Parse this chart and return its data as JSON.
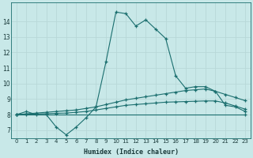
{
  "xlabel": "Humidex (Indice chaleur)",
  "bg_color": "#c8e8e8",
  "grid_color": "#b8d8d8",
  "line_color": "#1a6e6e",
  "xlim": [
    -0.5,
    23.5
  ],
  "ylim": [
    6.5,
    15.2
  ],
  "yticks": [
    7,
    8,
    9,
    10,
    11,
    12,
    13,
    14
  ],
  "xticks": [
    0,
    1,
    2,
    3,
    4,
    5,
    6,
    7,
    8,
    9,
    10,
    11,
    12,
    13,
    14,
    15,
    16,
    17,
    18,
    19,
    20,
    21,
    22,
    23
  ],
  "line1_x": [
    0,
    1,
    2,
    3,
    4,
    5,
    6,
    7,
    8,
    9,
    10,
    11,
    12,
    13,
    14,
    15,
    16,
    17,
    18,
    19,
    20,
    21,
    22,
    23
  ],
  "line1_y": [
    8.0,
    8.2,
    8.0,
    8.0,
    7.2,
    6.7,
    7.2,
    7.8,
    8.5,
    11.4,
    14.6,
    14.5,
    13.7,
    14.1,
    13.5,
    12.9,
    10.5,
    9.7,
    9.8,
    9.8,
    9.5,
    8.6,
    8.5,
    8.2
  ],
  "line2_x": [
    0,
    1,
    2,
    3,
    4,
    5,
    6,
    7,
    8,
    9,
    10,
    11,
    12,
    13,
    14,
    15,
    16,
    17,
    18,
    19,
    20,
    21,
    22,
    23
  ],
  "line2_y": [
    8.0,
    8.05,
    8.1,
    8.15,
    8.2,
    8.25,
    8.3,
    8.4,
    8.5,
    8.65,
    8.8,
    8.95,
    9.05,
    9.15,
    9.25,
    9.35,
    9.45,
    9.55,
    9.6,
    9.65,
    9.5,
    9.3,
    9.1,
    8.9
  ],
  "line3_x": [
    0,
    1,
    2,
    3,
    4,
    5,
    6,
    7,
    8,
    9,
    10,
    11,
    12,
    13,
    14,
    15,
    16,
    17,
    18,
    19,
    20,
    21,
    22,
    23
  ],
  "line3_y": [
    8.0,
    8.02,
    8.04,
    8.06,
    8.08,
    8.1,
    8.15,
    8.2,
    8.3,
    8.4,
    8.5,
    8.6,
    8.65,
    8.7,
    8.75,
    8.8,
    8.82,
    8.84,
    8.86,
    8.88,
    8.88,
    8.75,
    8.55,
    8.35
  ],
  "line4_x": [
    0,
    23
  ],
  "line4_y": [
    8.0,
    8.0
  ]
}
